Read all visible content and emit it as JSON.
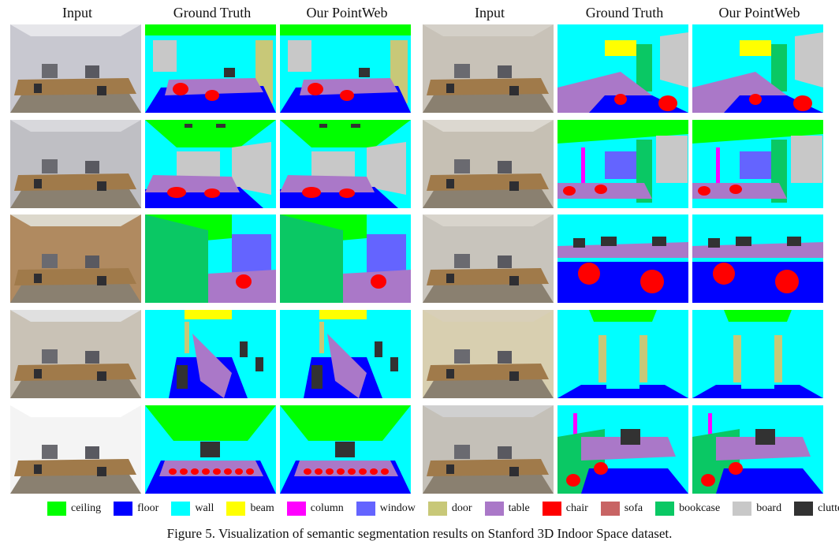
{
  "headers": [
    "Input",
    "Ground Truth",
    "Our PointWeb",
    "Input",
    "Ground Truth",
    "Our PointWeb"
  ],
  "legend": [
    {
      "label": "ceiling",
      "color": "#00ff00"
    },
    {
      "label": "floor",
      "color": "#0000ff"
    },
    {
      "label": "wall",
      "color": "#00ffff"
    },
    {
      "label": "beam",
      "color": "#ffff00"
    },
    {
      "label": "column",
      "color": "#ff00ff"
    },
    {
      "label": "window",
      "color": "#6464ff"
    },
    {
      "label": "door",
      "color": "#c8c878"
    },
    {
      "label": "table",
      "color": "#aa78c8"
    },
    {
      "label": "chair",
      "color": "#ff0000"
    },
    {
      "label": "sofa",
      "color": "#c86464"
    },
    {
      "label": "bookcase",
      "color": "#0ac864"
    },
    {
      "label": "board",
      "color": "#c8c8c8"
    },
    {
      "label": "clutter",
      "color": "#323232"
    }
  ],
  "caption": "Figure 5. Visualization of semantic segmentation results on Stanford 3D Indoor Space dataset."
}
